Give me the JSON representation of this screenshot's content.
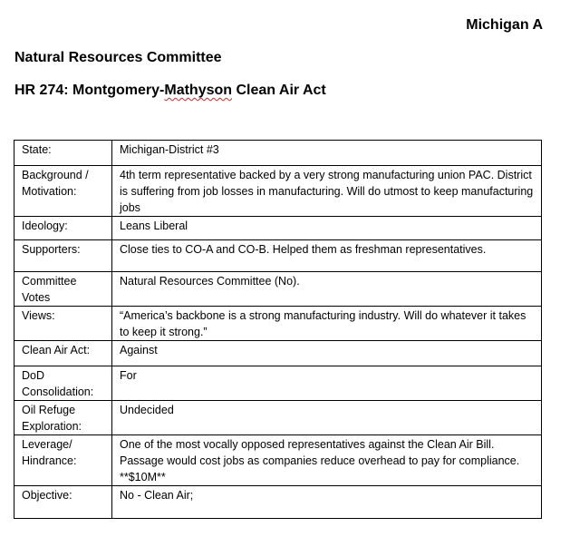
{
  "header": {
    "tag": "Michigan A",
    "committee": "Natural Resources Committee",
    "bill_prefix": "HR 274: Montgomery-",
    "bill_misspelled": "Mathyson",
    "bill_suffix": " Clean Air Act"
  },
  "rows": [
    {
      "label": "State:",
      "value": "Michigan-District #3"
    },
    {
      "label": "Background / Motivation:",
      "value": "4th term representative backed by a very strong manufacturing union PAC. District is suffering from job losses in manufacturing. Will do utmost to keep manufacturing jobs"
    },
    {
      "label": "Ideology:",
      "value": "Leans Liberal"
    },
    {
      "label": "Supporters:",
      "value": "Close ties to CO-A and CO-B. Helped them as freshman representatives."
    },
    {
      "label": "Committee Votes",
      "value": "Natural Resources Committee (No)."
    },
    {
      "label": "Views:",
      "value": "“America’s backbone is a strong manufacturing industry. Will do whatever it takes to keep it strong.”"
    },
    {
      "label": "Clean Air Act:",
      "value": "Against"
    },
    {
      "label": "DoD Consolidation:",
      "value": "For"
    },
    {
      "label": "Oil Refuge Exploration:",
      "value": "Undecided"
    },
    {
      "label": "Leverage/ Hindrance:",
      "value": "One of the most vocally opposed representatives against the Clean Air Bill. Passage would cost jobs as companies reduce overhead to pay for compliance.     **$10M**"
    },
    {
      "label": "Objective:",
      "value": "No - Clean Air;"
    }
  ]
}
